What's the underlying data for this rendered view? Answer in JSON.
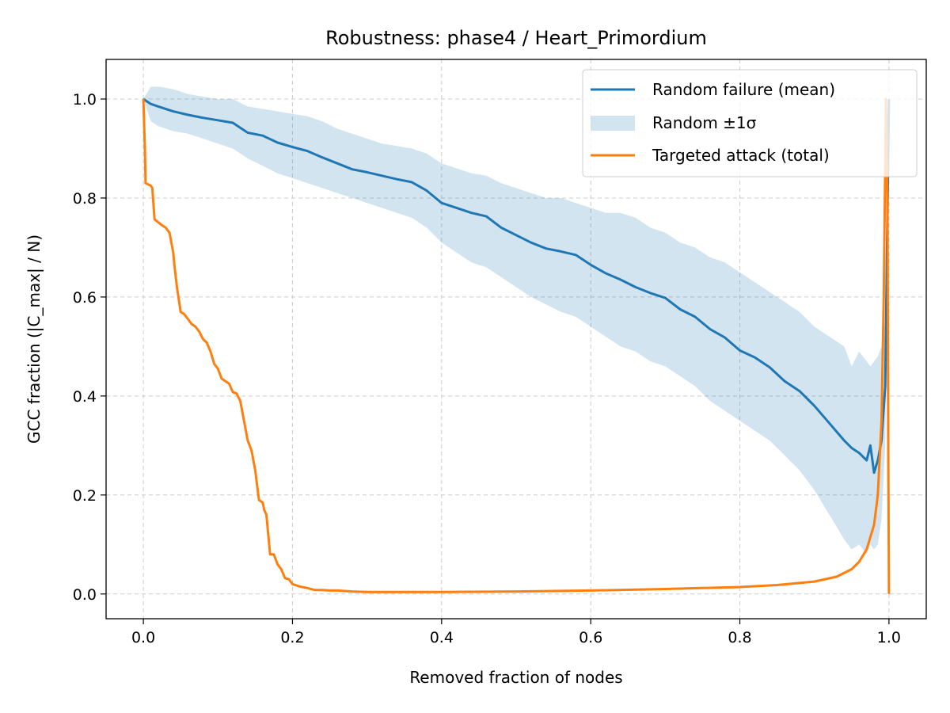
{
  "chart_data": {
    "type": "line",
    "title": "Robustness: phase4 / Heart_Primordium",
    "xlabel": "Removed fraction of nodes",
    "ylabel": "GCC fraction (|C_max| / N)",
    "xlim": [
      -0.05,
      1.05
    ],
    "ylim": [
      -0.05,
      1.08
    ],
    "xticks": [
      0.0,
      0.2,
      0.4,
      0.6,
      0.8,
      1.0
    ],
    "xtick_labels": [
      "0.0",
      "0.2",
      "0.4",
      "0.6",
      "0.8",
      "1.0"
    ],
    "yticks": [
      0.0,
      0.2,
      0.4,
      0.6,
      0.8,
      1.0
    ],
    "ytick_labels": [
      "0.0",
      "0.2",
      "0.4",
      "0.6",
      "0.8",
      "1.0"
    ],
    "grid": true,
    "legend_position": "top-right",
    "colors": {
      "random_mean": "#1f77b4",
      "random_band": "#1f77b4",
      "targeted": "#ff7f0e",
      "grid": "#cccccc"
    },
    "series": [
      {
        "name": "Random failure (mean)",
        "kind": "line",
        "x": [
          0.0,
          0.01,
          0.02,
          0.04,
          0.06,
          0.08,
          0.1,
          0.12,
          0.14,
          0.16,
          0.18,
          0.2,
          0.22,
          0.24,
          0.26,
          0.28,
          0.3,
          0.32,
          0.34,
          0.36,
          0.38,
          0.4,
          0.42,
          0.44,
          0.46,
          0.48,
          0.5,
          0.52,
          0.54,
          0.56,
          0.58,
          0.6,
          0.62,
          0.64,
          0.66,
          0.68,
          0.7,
          0.72,
          0.74,
          0.76,
          0.78,
          0.8,
          0.82,
          0.84,
          0.86,
          0.88,
          0.9,
          0.92,
          0.94,
          0.95,
          0.96,
          0.97,
          0.975,
          0.98,
          0.985,
          0.99,
          0.995,
          1.0
        ],
        "y": [
          1.0,
          0.99,
          0.985,
          0.975,
          0.968,
          0.962,
          0.957,
          0.952,
          0.932,
          0.926,
          0.912,
          0.903,
          0.895,
          0.882,
          0.87,
          0.858,
          0.852,
          0.845,
          0.838,
          0.832,
          0.815,
          0.79,
          0.78,
          0.77,
          0.763,
          0.74,
          0.725,
          0.71,
          0.698,
          0.692,
          0.685,
          0.665,
          0.648,
          0.635,
          0.62,
          0.608,
          0.598,
          0.575,
          0.56,
          0.535,
          0.518,
          0.492,
          0.478,
          0.458,
          0.43,
          0.41,
          0.38,
          0.345,
          0.31,
          0.295,
          0.285,
          0.27,
          0.3,
          0.245,
          0.27,
          0.31,
          0.42,
          1.0
        ]
      },
      {
        "name": "Random ±1σ",
        "kind": "band",
        "x": [
          0.0,
          0.01,
          0.02,
          0.04,
          0.06,
          0.08,
          0.1,
          0.12,
          0.14,
          0.16,
          0.18,
          0.2,
          0.22,
          0.24,
          0.26,
          0.28,
          0.3,
          0.32,
          0.34,
          0.36,
          0.38,
          0.4,
          0.42,
          0.44,
          0.46,
          0.48,
          0.5,
          0.52,
          0.54,
          0.56,
          0.58,
          0.6,
          0.62,
          0.64,
          0.66,
          0.68,
          0.7,
          0.72,
          0.74,
          0.76,
          0.78,
          0.8,
          0.82,
          0.84,
          0.86,
          0.88,
          0.9,
          0.92,
          0.94,
          0.95,
          0.96,
          0.97,
          0.975,
          0.98,
          0.985,
          0.99,
          0.995,
          1.0
        ],
        "lower": [
          1.0,
          0.955,
          0.945,
          0.935,
          0.93,
          0.92,
          0.91,
          0.9,
          0.88,
          0.865,
          0.85,
          0.84,
          0.83,
          0.82,
          0.81,
          0.8,
          0.79,
          0.78,
          0.77,
          0.76,
          0.74,
          0.71,
          0.69,
          0.67,
          0.66,
          0.64,
          0.62,
          0.6,
          0.585,
          0.57,
          0.56,
          0.54,
          0.52,
          0.5,
          0.49,
          0.47,
          0.46,
          0.44,
          0.42,
          0.39,
          0.37,
          0.35,
          0.33,
          0.31,
          0.28,
          0.25,
          0.21,
          0.16,
          0.11,
          0.09,
          0.1,
          0.08,
          0.1,
          0.09,
          0.1,
          0.15,
          0.3,
          1.0
        ],
        "upper": [
          1.0,
          1.025,
          1.025,
          1.02,
          1.01,
          1.005,
          1.0,
          1.0,
          0.985,
          0.98,
          0.975,
          0.97,
          0.965,
          0.955,
          0.94,
          0.93,
          0.92,
          0.91,
          0.905,
          0.9,
          0.89,
          0.87,
          0.86,
          0.85,
          0.845,
          0.83,
          0.82,
          0.81,
          0.8,
          0.8,
          0.79,
          0.78,
          0.77,
          0.77,
          0.76,
          0.74,
          0.73,
          0.71,
          0.7,
          0.68,
          0.67,
          0.65,
          0.63,
          0.61,
          0.59,
          0.57,
          0.54,
          0.52,
          0.5,
          0.46,
          0.49,
          0.47,
          0.46,
          0.47,
          0.48,
          0.5,
          0.55,
          1.0
        ]
      },
      {
        "name": "Targeted attack (total)",
        "kind": "line",
        "x": [
          0.0,
          0.002,
          0.003,
          0.01,
          0.012,
          0.015,
          0.025,
          0.03,
          0.035,
          0.04,
          0.042,
          0.045,
          0.05,
          0.055,
          0.06,
          0.065,
          0.07,
          0.075,
          0.08,
          0.085,
          0.09,
          0.095,
          0.1,
          0.105,
          0.11,
          0.115,
          0.12,
          0.125,
          0.13,
          0.135,
          0.14,
          0.145,
          0.15,
          0.155,
          0.16,
          0.162,
          0.165,
          0.17,
          0.175,
          0.18,
          0.185,
          0.19,
          0.195,
          0.2,
          0.21,
          0.22,
          0.23,
          0.24,
          0.25,
          0.26,
          0.27,
          0.28,
          0.3,
          0.4,
          0.5,
          0.6,
          0.7,
          0.8,
          0.85,
          0.9,
          0.93,
          0.95,
          0.96,
          0.97,
          0.98,
          0.985,
          0.99,
          0.993,
          0.996,
          0.998,
          0.999,
          1.0
        ],
        "y": [
          1.0,
          0.9,
          0.83,
          0.825,
          0.82,
          0.757,
          0.745,
          0.74,
          0.73,
          0.69,
          0.66,
          0.62,
          0.57,
          0.565,
          0.555,
          0.545,
          0.54,
          0.53,
          0.515,
          0.508,
          0.49,
          0.465,
          0.455,
          0.435,
          0.43,
          0.425,
          0.408,
          0.405,
          0.39,
          0.35,
          0.31,
          0.29,
          0.25,
          0.19,
          0.185,
          0.17,
          0.16,
          0.08,
          0.08,
          0.06,
          0.05,
          0.032,
          0.03,
          0.02,
          0.015,
          0.012,
          0.008,
          0.008,
          0.007,
          0.007,
          0.006,
          0.005,
          0.004,
          0.004,
          0.005,
          0.007,
          0.01,
          0.014,
          0.018,
          0.025,
          0.035,
          0.05,
          0.065,
          0.09,
          0.14,
          0.2,
          0.35,
          0.6,
          1.0,
          0.8,
          0.3,
          0.0
        ]
      }
    ]
  }
}
